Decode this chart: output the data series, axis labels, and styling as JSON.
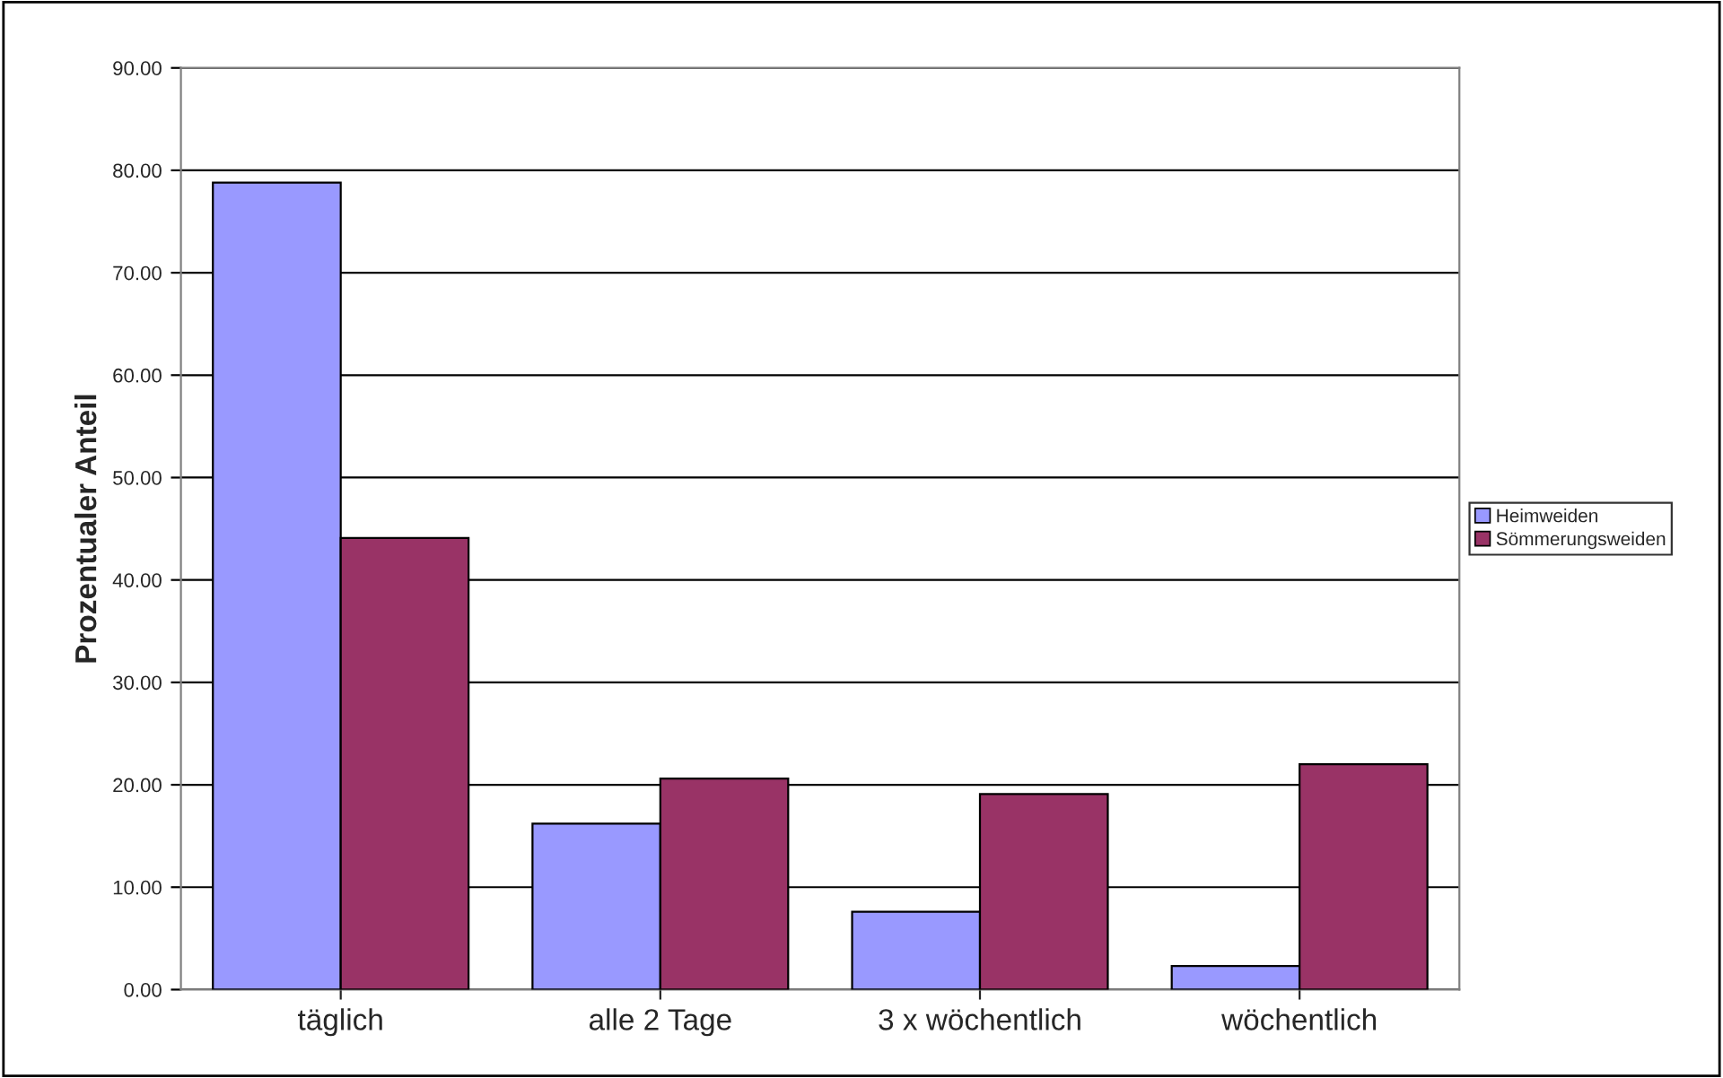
{
  "chart_data": {
    "type": "bar",
    "ylabel": "Prozentualer Anteil",
    "categories": [
      "täglich",
      "alle 2 Tage",
      "3 x wöchentlich",
      "wöchentlich"
    ],
    "series": [
      {
        "name": "Heimweiden",
        "color": "#9999ff",
        "values": [
          78.8,
          16.2,
          7.6,
          2.3
        ]
      },
      {
        "name": "Sömmerungsweiden",
        "color": "#993366",
        "values": [
          44.1,
          20.6,
          19.1,
          22.0
        ]
      }
    ],
    "ylim": [
      0,
      90
    ],
    "yticks": [
      {
        "value": 0,
        "label": "0.00"
      },
      {
        "value": 10,
        "label": "10.00"
      },
      {
        "value": 20,
        "label": "20.00"
      },
      {
        "value": 30,
        "label": "30.00"
      },
      {
        "value": 40,
        "label": "40.00"
      },
      {
        "value": 50,
        "label": "50.00"
      },
      {
        "value": 60,
        "label": "60.00"
      },
      {
        "value": 70,
        "label": "70.00"
      },
      {
        "value": 80,
        "label": "80.00"
      },
      {
        "value": 90,
        "label": "90.00"
      }
    ],
    "grid": "y",
    "legend": "right"
  }
}
